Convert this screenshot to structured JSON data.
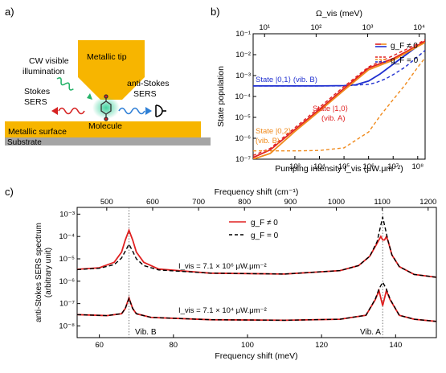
{
  "panel_labels": {
    "a": "a)",
    "b": "b)",
    "c": "c)"
  },
  "schematic": {
    "metallic_tip": "Metallic tip",
    "illumination_line1": "CW visible",
    "illumination_line2": "illumination",
    "stokes_line1": "Stokes",
    "stokes_line2": "SERS",
    "antistokes_line1": "anti-Stokes",
    "antistokes_line2": "SERS",
    "molecule": "Molecule",
    "metallic_surface": "Metallic surface",
    "substrate": "Substrate"
  },
  "colors": {
    "red": "#e02020",
    "blue": "#2030d0",
    "orange": "#f08a1c",
    "black": "#000000",
    "tip": "#f7b500",
    "substrate": "#a5a5a5"
  },
  "chart_data": [
    {
      "id": "b",
      "type": "line",
      "xscale": "log",
      "yscale": "log",
      "xlabel": "Pumping intensity I_vis (μW.μm⁻²)",
      "x2label": "Ω_vis (meV)",
      "ylabel": "State population",
      "xlim": [
        20,
        200000000
      ],
      "ylim": [
        1e-07,
        0.1
      ],
      "x2lim": [
        6,
        13000
      ],
      "xticks": [
        "10³",
        "10⁴",
        "10⁵",
        "10⁶",
        "10⁷",
        "10⁸"
      ],
      "yticks": [
        "10⁻⁷",
        "10⁻⁶",
        "10⁻⁵",
        "10⁻⁴",
        "10⁻³",
        "10⁻²",
        "10⁻¹"
      ],
      "x2ticks": [
        "10¹",
        "10²",
        "10³",
        "10⁴"
      ],
      "legend": {
        "position": "top-right",
        "entries": [
          {
            "label": "g_F ≠ 0",
            "style": "solid"
          },
          {
            "label": "g_F = 0",
            "style": "dashed"
          }
        ]
      },
      "annotations": [
        {
          "text": "State |0,1⟩ (vib. B)",
          "color": "blue"
        },
        {
          "text_line1": "State |1,0⟩",
          "text_line2": "(vib. A)",
          "color": "red"
        },
        {
          "text_line1": "State |0,2⟩",
          "text_line2": "(vib. B)",
          "color": "orange"
        }
      ],
      "series": [
        {
          "name": "|0,1⟩ g_F≠0",
          "color": "blue",
          "style": "solid",
          "x": [
            20,
            1000.0,
            10000.0,
            100000.0,
            300000.0,
            1000000.0,
            3000000.0,
            10000000.0,
            100000000.0,
            200000000.0
          ],
          "y": [
            0.00032,
            0.00032,
            0.00032,
            0.00033,
            0.00036,
            0.00055,
            0.0012,
            0.0035,
            0.026,
            0.04
          ]
        },
        {
          "name": "|0,1⟩ g_F=0",
          "color": "blue",
          "style": "dashed",
          "x": [
            20,
            10000.0,
            100000.0,
            1000000.0,
            2000000.0,
            5000000.0,
            10000000.0,
            30000000.0,
            100000000.0,
            200000000.0
          ],
          "y": [
            0.00032,
            0.00032,
            0.00032,
            0.00038,
            0.00046,
            0.0007,
            0.0011,
            0.0025,
            0.008,
            0.016
          ]
        },
        {
          "name": "|1,0⟩ g_F≠0",
          "color": "red",
          "style": "solid",
          "x": [
            20,
            100.0,
            1000.0,
            10000.0,
            100000.0,
            1000000.0,
            10000000.0,
            100000000.0,
            200000000.0
          ],
          "y": [
            1.2e-07,
            2.8e-07,
            2.6e-06,
            2.4e-05,
            0.00024,
            0.0023,
            0.0065,
            0.028,
            0.045
          ]
        },
        {
          "name": "|1,0⟩ g_F=0",
          "color": "red",
          "style": "dashed",
          "x": [
            20,
            100.0,
            1000.0,
            10000.0,
            100000.0,
            1000000.0,
            10000000.0,
            100000000.0,
            200000000.0
          ],
          "y": [
            1.5e-07,
            3.3e-07,
            3.2e-06,
            3e-05,
            0.0003,
            0.0026,
            0.009,
            0.033,
            0.052
          ]
        },
        {
          "name": "|0,2⟩ g_F≠0",
          "color": "orange",
          "style": "solid",
          "x": [
            20,
            100.0,
            1000.0,
            10000.0,
            100000.0,
            1000000.0,
            10000000.0,
            100000000.0,
            200000000.0
          ],
          "y": [
            1e-07,
            1.9e-07,
            2.1e-06,
            2e-05,
            0.0002,
            0.0019,
            0.0055,
            0.025,
            0.038
          ]
        },
        {
          "name": "|0,2⟩ g_F=0",
          "color": "orange",
          "style": "dashed",
          "x": [
            20,
            100.0,
            1000.0,
            10000.0,
            100000.0,
            1000000.0,
            3000000.0,
            10000000.0,
            30000000.0,
            100000000.0,
            200000000.0
          ],
          "y": [
            2.5e-07,
            2.5e-07,
            2.5e-07,
            2.6e-07,
            3.5e-07,
            2e-06,
            1.2e-05,
            7e-05,
            0.00035,
            0.0025,
            0.007
          ]
        }
      ]
    },
    {
      "id": "c",
      "type": "line",
      "yscale": "log",
      "xlabel": "Frequency shift (meV)",
      "x2label": "Frequency shift (cm⁻¹)",
      "ylabel_line1": "anti-Stokes SERS spectrum",
      "ylabel_line2": "(arbitrary unit)",
      "xlim": [
        54,
        151
      ],
      "ylim": [
        3e-09,
        0.002
      ],
      "xticks": [
        "60",
        "80",
        "100",
        "120",
        "140"
      ],
      "x2ticks": [
        "500",
        "600",
        "700",
        "800",
        "900",
        "1000",
        "1100",
        "1200"
      ],
      "yticks": [
        "10⁻⁸",
        "10⁻⁷",
        "10⁻⁶",
        "10⁻⁵",
        "10⁻⁴",
        "10⁻³"
      ],
      "legend": {
        "position": "top-center",
        "entries": [
          {
            "label": "g_F ≠ 0",
            "style": "solid"
          },
          {
            "label": "g_F = 0",
            "style": "dashed"
          }
        ]
      },
      "annotations": [
        {
          "text": "I_vis = 7.1 × 10⁶ μW.μm⁻²"
        },
        {
          "text": "I_vis = 7.1 × 10⁴ μW.μm⁻²"
        },
        {
          "text": "Vib. B"
        },
        {
          "text": "Vib. A"
        }
      ],
      "vlines": [
        68,
        136.5
      ],
      "series": [
        {
          "name": "7.1e6 g_F≠0",
          "color": "red",
          "style": "solid",
          "x": [
            54,
            60,
            64,
            66,
            67,
            68,
            69,
            70,
            72,
            76,
            90,
            110,
            125,
            130,
            133,
            135,
            136,
            136.5,
            137,
            137.5,
            138,
            139,
            141,
            145,
            151
          ],
          "y": [
            3.4e-06,
            4e-06,
            7e-06,
            2e-05,
            7e-05,
            0.00019,
            7e-05,
            2e-05,
            7e-06,
            3.5e-06,
            2.3e-06,
            2.1e-06,
            3e-06,
            5e-06,
            1.3e-05,
            5e-05,
            0.0001,
            7e-05,
            7e-05,
            0.0001,
            6e-05,
            1.5e-05,
            4.5e-06,
            2e-06,
            1.5e-06
          ]
        },
        {
          "name": "7.1e6 g_F=0",
          "color": "black",
          "style": "dashed",
          "x": [
            54,
            60,
            64,
            66,
            67,
            68,
            69,
            70,
            72,
            76,
            90,
            110,
            125,
            130,
            133,
            135,
            136.5,
            138,
            139,
            141,
            145,
            151
          ],
          "y": [
            3.3e-06,
            3.8e-06,
            5.5e-06,
            1.1e-05,
            2.2e-05,
            4.5e-05,
            2.2e-05,
            1e-05,
            5e-06,
            3.2e-06,
            2.3e-06,
            2.1e-06,
            3e-06,
            5e-06,
            1.3e-05,
            6e-05,
            0.00075,
            6e-05,
            1.5e-05,
            4.5e-06,
            2e-06,
            1.5e-06
          ]
        },
        {
          "name": "7.1e4 g_F≠0",
          "color": "red",
          "style": "solid",
          "x": [
            54,
            62,
            66,
            67,
            68,
            69,
            70,
            74,
            90,
            110,
            125,
            132,
            134.5,
            135.5,
            136.5,
            137.5,
            138.5,
            141,
            145,
            151
          ],
          "y": [
            3.2e-08,
            2.9e-08,
            3.5e-08,
            6e-08,
            1.8e-07,
            6e-08,
            3.5e-08,
            2.4e-08,
            1.9e-08,
            1.8e-08,
            2e-08,
            3e-08,
            1.5e-07,
            3.8e-07,
            8e-08,
            3.8e-07,
            1.5e-07,
            3e-08,
            2e-08,
            1.6e-08
          ]
        },
        {
          "name": "7.1e4 g_F=0",
          "color": "black",
          "style": "dashed",
          "x": [
            54,
            62,
            66,
            67,
            68,
            69,
            70,
            74,
            90,
            110,
            125,
            132,
            134.5,
            135.5,
            136.5,
            137.5,
            138.5,
            141,
            145,
            151
          ],
          "y": [
            3.2e-08,
            2.9e-08,
            3.5e-08,
            6e-08,
            1.7e-07,
            6e-08,
            3.5e-08,
            2.4e-08,
            1.9e-08,
            1.8e-08,
            2e-08,
            3e-08,
            1.6e-07,
            4.5e-07,
            9e-07,
            4.5e-07,
            1.6e-07,
            3e-08,
            2e-08,
            1.6e-08
          ]
        }
      ]
    }
  ]
}
